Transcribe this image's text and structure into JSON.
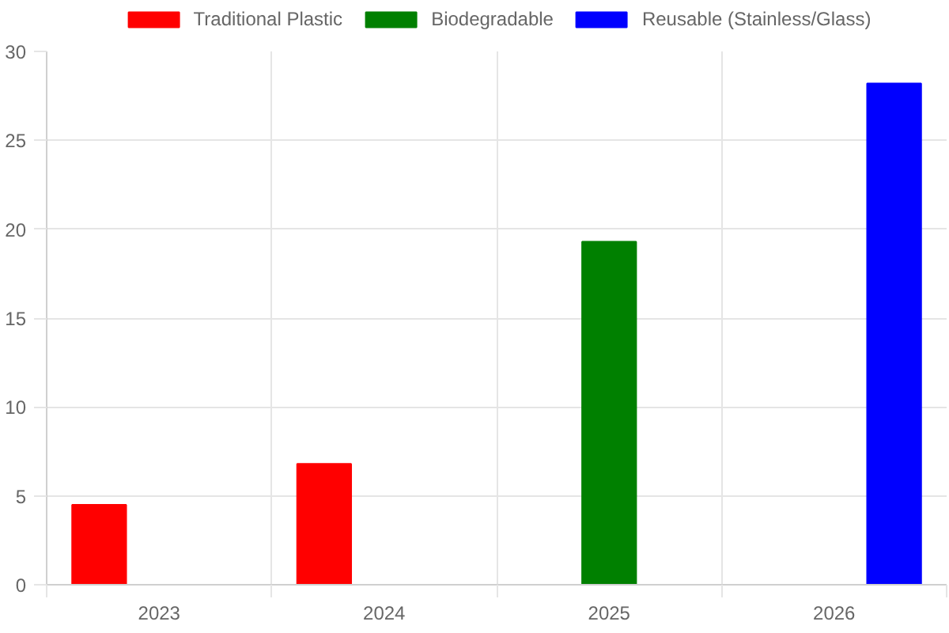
{
  "chart_data": {
    "type": "bar",
    "categories": [
      "2023",
      "2024",
      "2025",
      "2026"
    ],
    "series": [
      {
        "name": "Traditional Plastic",
        "color": "#ff0000",
        "values": [
          4.5,
          6.8,
          null,
          null
        ]
      },
      {
        "name": "Biodegradable",
        "color": "#008000",
        "values": [
          null,
          null,
          19.3,
          null
        ]
      },
      {
        "name": "Reusable (Stainless/Glass)",
        "color": "#0000ff",
        "values": [
          null,
          null,
          null,
          28.2
        ]
      }
    ],
    "ylim": [
      0,
      30
    ],
    "yticks": [
      0,
      5,
      10,
      15,
      20,
      25,
      30
    ],
    "grid": true,
    "legend": "top"
  }
}
